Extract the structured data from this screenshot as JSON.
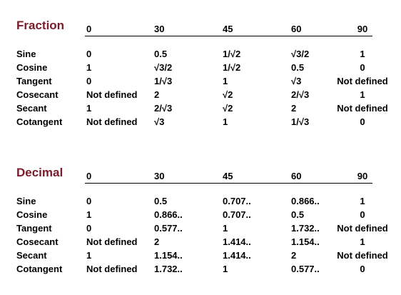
{
  "fraction": {
    "title": "Fraction",
    "headers": [
      "0",
      "30",
      "45",
      "60",
      "90"
    ],
    "rows": [
      {
        "label": "Sine",
        "values": [
          "0",
          "0.5",
          "1/√2",
          "√3/2",
          "1"
        ]
      },
      {
        "label": "Cosine",
        "values": [
          "1",
          "√3/2",
          "1/√2",
          "0.5",
          "0"
        ]
      },
      {
        "label": "Tangent",
        "values": [
          "0",
          "1/√3",
          "1",
          "√3",
          "Not defined"
        ]
      },
      {
        "label": "Cosecant",
        "values": [
          "Not defined",
          "2",
          "√2",
          "2/√3",
          "1"
        ]
      },
      {
        "label": "Secant",
        "values": [
          "1",
          "2/√3",
          "√2",
          "2",
          "Not defined"
        ]
      },
      {
        "label": "Cotangent",
        "values": [
          "Not defined",
          "√3",
          "1",
          "1/√3",
          "0"
        ]
      }
    ]
  },
  "decimal": {
    "title": "Decimal",
    "headers": [
      "0",
      "30",
      "45",
      "60",
      "90"
    ],
    "rows": [
      {
        "label": "Sine",
        "values": [
          "0",
          "0.5",
          "0.707..",
          "0.866..",
          "1"
        ]
      },
      {
        "label": "Cosine",
        "values": [
          "1",
          "0.866..",
          "0.707..",
          "0.5",
          "0"
        ]
      },
      {
        "label": "Tangent",
        "values": [
          "0",
          "0.577..",
          "1",
          "1.732..",
          "Not defined"
        ]
      },
      {
        "label": "Cosecant",
        "values": [
          "Not defined",
          "2",
          "1.414..",
          "1.154..",
          "1"
        ]
      },
      {
        "label": "Secant",
        "values": [
          "1",
          "1.154..",
          "1.414..",
          "2",
          "Not defined"
        ]
      },
      {
        "label": "Cotangent",
        "values": [
          "Not defined",
          "1.732..",
          "1",
          "0.577..",
          "0"
        ]
      }
    ]
  }
}
